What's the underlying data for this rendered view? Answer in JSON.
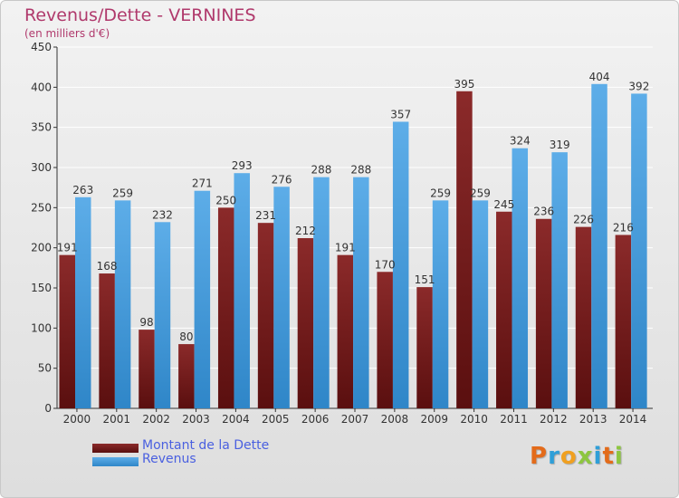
{
  "header": {
    "title": "Revenus/Dette - VERNINES",
    "subtitle": "(en milliers d'€)"
  },
  "legend": {
    "debt": "Montant de la Dette",
    "revenue": "Revenus"
  },
  "logo": {
    "text": "Proxiti",
    "letters": [
      "P",
      "r",
      "o",
      "x",
      "i",
      "t",
      "i"
    ],
    "colors": [
      "#e36b1a",
      "#2f9fd8",
      "#f0a020",
      "#8dc63f",
      "#2f9fd8",
      "#e36b1a",
      "#8dc63f"
    ]
  },
  "colors": {
    "debt": "#8b2a2a",
    "debt_dark": "#5a0f0f",
    "revenue": "#5dade8",
    "revenue_dark": "#2f86c8",
    "grid": "#ffffff",
    "axis": "#333333"
  },
  "chart_data": {
    "type": "bar",
    "title": "Revenus/Dette - VERNINES",
    "ylabel": "(en milliers d'€)",
    "xlabel": "",
    "categories": [
      "2000",
      "2001",
      "2002",
      "2003",
      "2004",
      "2005",
      "2006",
      "2007",
      "2008",
      "2009",
      "2010",
      "2011",
      "2012",
      "2013",
      "2014"
    ],
    "series": [
      {
        "name": "Montant de la Dette",
        "values": [
          191,
          168,
          98,
          80,
          250,
          231,
          212,
          191,
          170,
          151,
          395,
          245,
          236,
          226,
          216
        ]
      },
      {
        "name": "Revenus",
        "values": [
          263,
          259,
          232,
          271,
          293,
          276,
          288,
          288,
          357,
          259,
          259,
          324,
          319,
          404,
          392
        ]
      }
    ],
    "ylim": [
      0,
      450
    ],
    "yticks": [
      0,
      50,
      100,
      150,
      200,
      250,
      300,
      350,
      400,
      450
    ],
    "grid": true,
    "legend_position": "bottom-left"
  }
}
